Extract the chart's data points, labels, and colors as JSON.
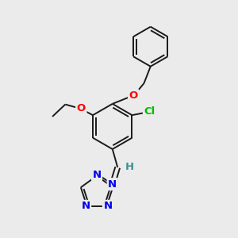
{
  "bg_color": "#ebebeb",
  "bond_color": "#1a1a1a",
  "bond_width": 1.4,
  "atom_colors": {
    "O": "#ff0000",
    "Cl": "#00bb00",
    "N": "#0000ee",
    "H": "#3a9090",
    "C": "#1a1a1a"
  }
}
